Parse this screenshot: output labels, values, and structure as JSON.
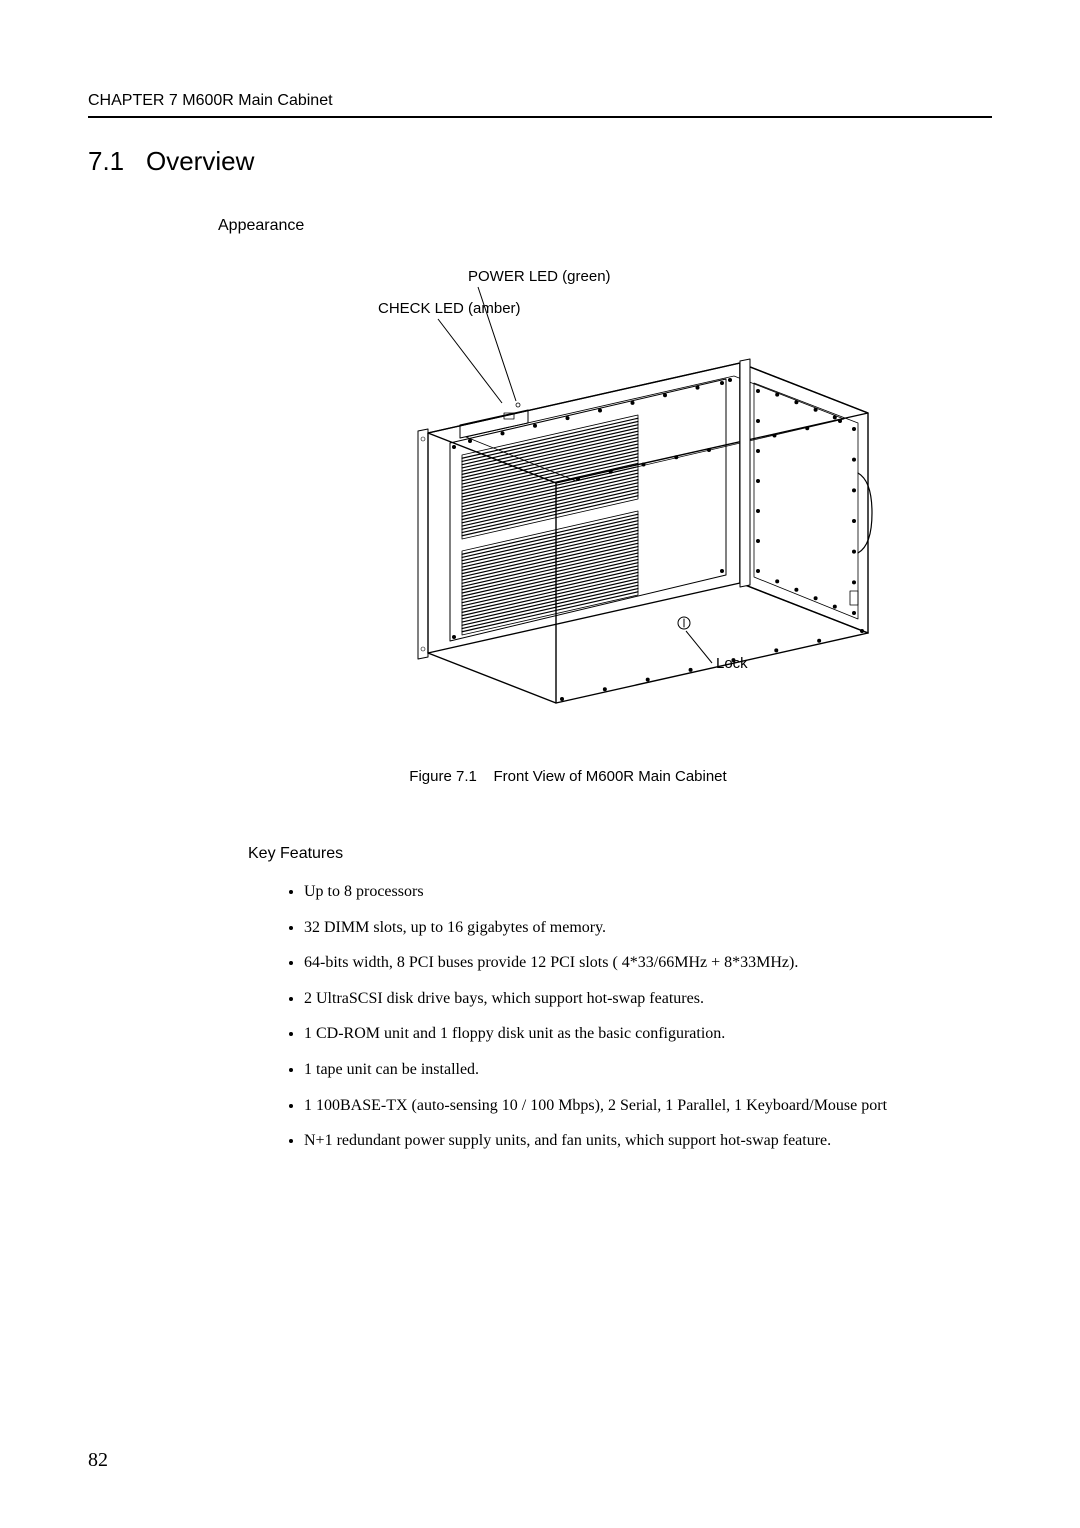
{
  "header": {
    "chapter_line": "CHAPTER 7   M600R Main Cabinet"
  },
  "section": {
    "number": "7.1",
    "title": "Overview"
  },
  "appearance": {
    "label": "Appearance"
  },
  "figure": {
    "labels": {
      "power_led": "POWER LED (green)",
      "check_led": "CHECK LED (amber)",
      "lock": "Lock"
    },
    "caption_prefix": "Figure 7.1",
    "caption_text": "Front View of M600R Main Cabinet",
    "style": {
      "stroke": "#000000",
      "stroke_width_outline": 1.4,
      "stroke_width_detail": 0.8,
      "vent_line_width": 1.2,
      "vent_line_count_panel": 26,
      "rivet_radius": 1.6,
      "background": "none"
    }
  },
  "key_features": {
    "heading": "Key Features",
    "items": [
      "Up to 8 processors",
      "32 DIMM slots, up to 16 gigabytes of memory.",
      "64-bits width, 8 PCI buses provide 12 PCI slots ( 4*33/66MHz + 8*33MHz).",
      "2 UltraSCSI disk drive bays, which support hot-swap features.",
      "1 CD-ROM unit and 1 floppy disk unit as the basic configuration.",
      "1 tape unit can be installed.",
      "1 100BASE-TX (auto-sensing 10 / 100 Mbps), 2 Serial, 1 Parallel, 1 Keyboard/Mouse port",
      "N+1 redundant power supply units, and fan units, which support hot-swap feature."
    ]
  },
  "page_number": "82"
}
